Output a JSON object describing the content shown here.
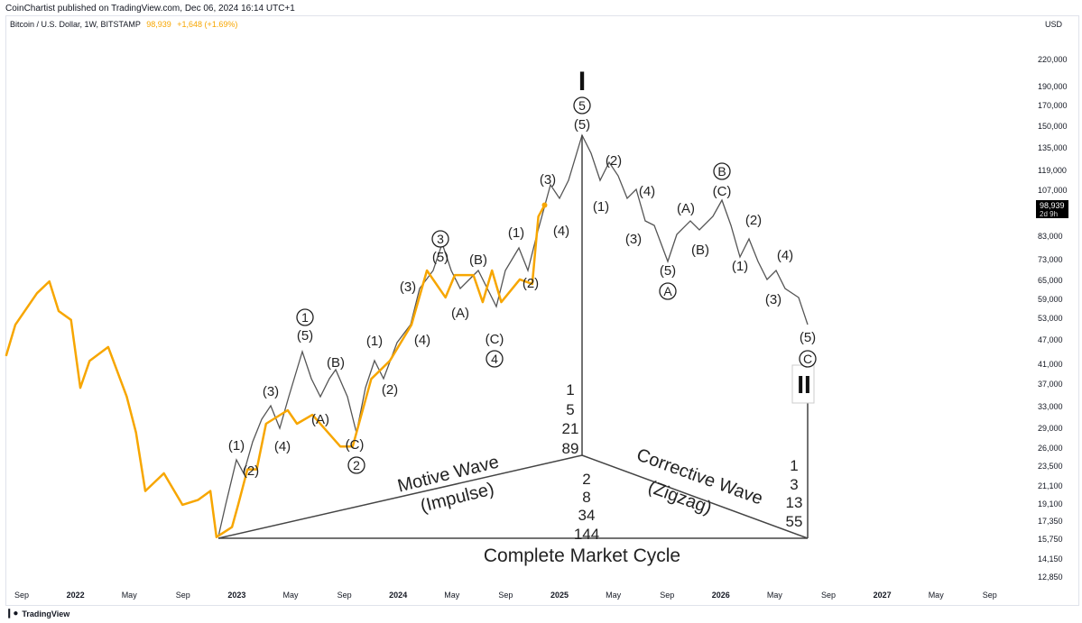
{
  "header": {
    "published": "CoinChartist published on TradingView.com, Dec 06, 2024 16:14 UTC+1"
  },
  "legend": {
    "symbol": "Bitcoin / U.S. Dollar, 1W, BITSTAMP",
    "last": "98,939",
    "change": "+1,648 (+1.69%)"
  },
  "price_tag": {
    "price": "98,939",
    "countdown": "2d 9h"
  },
  "footer": {
    "logo": "TradingView"
  },
  "colors": {
    "price_line": "#f7a600",
    "wave": "#555555",
    "tag_bg": "#000000"
  },
  "chart_data": {
    "type": "line",
    "yscale": "log",
    "ylabel": "USD",
    "ylim": [
      12000,
      240000
    ],
    "y_ticks": [
      "220,000",
      "190,000",
      "170,000",
      "150,000",
      "135,000",
      "119,000",
      "107,000",
      "83,000",
      "73,000",
      "65,000",
      "59,000",
      "53,000",
      "47,000",
      "41,000",
      "37,000",
      "33,000",
      "29,000",
      "26,000",
      "23,500",
      "21,100",
      "19,100",
      "17,350",
      "15,750",
      "14,150",
      "12,850"
    ],
    "x_ticks": [
      "Sep",
      "2022",
      "May",
      "Sep",
      "2023",
      "May",
      "Sep",
      "2024",
      "May",
      "Sep",
      "2025",
      "May",
      "Sep",
      "2026",
      "May",
      "Sep",
      "2027",
      "May",
      "Sep"
    ],
    "series": [
      {
        "points": [
          [
            "2021-08-02",
            43200
          ],
          [
            "2021-08-23",
            51300
          ],
          [
            "2021-10-11",
            61000
          ],
          [
            "2021-11-08",
            65100
          ],
          [
            "2021-11-29",
            55300
          ],
          [
            "2021-12-27",
            52700
          ],
          [
            "2022-01-17",
            36300
          ],
          [
            "2022-02-07",
            42100
          ],
          [
            "2022-03-21",
            45400
          ],
          [
            "2022-05-02",
            34600
          ],
          [
            "2022-05-23",
            28400
          ],
          [
            "2022-06-13",
            20600
          ],
          [
            "2022-07-25",
            22700
          ],
          [
            "2022-09-05",
            19100
          ],
          [
            "2022-10-10",
            19600
          ],
          [
            "2022-11-07",
            20600
          ],
          [
            "2022-11-21",
            16000
          ],
          [
            "2022-12-26",
            16900
          ],
          [
            "2023-01-09",
            19100
          ],
          [
            "2023-01-30",
            23200
          ],
          [
            "2023-02-20",
            23200
          ],
          [
            "2023-03-13",
            29800
          ],
          [
            "2023-05-01",
            32100
          ],
          [
            "2023-05-22",
            29800
          ],
          [
            "2023-06-26",
            31300
          ],
          [
            "2023-08-28",
            26300
          ],
          [
            "2023-09-25",
            26300
          ],
          [
            "2023-11-06",
            38100
          ],
          [
            "2023-12-18",
            42100
          ],
          [
            "2024-02-05",
            51300
          ],
          [
            "2024-03-11",
            69100
          ],
          [
            "2024-04-22",
            59600
          ],
          [
            "2024-05-13",
            67400
          ],
          [
            "2024-06-24",
            67400
          ],
          [
            "2024-07-15",
            58100
          ],
          [
            "2024-08-05",
            69100
          ],
          [
            "2024-08-26",
            58100
          ],
          [
            "2024-10-07",
            65800
          ],
          [
            "2024-11-04",
            64200
          ],
          [
            "2024-11-18",
            92900
          ],
          [
            "2024-12-02",
            98939
          ]
        ]
      }
    ],
    "annotations": {
      "wave_labels_circled": [
        "1",
        "2",
        "3",
        "4",
        "5",
        "A",
        "B",
        "C"
      ],
      "wave_labels": [
        "(1)",
        "(2)",
        "(3)",
        "(4)",
        "(5)",
        "(A)",
        "(B)",
        "(C)",
        "(1)",
        "(2)",
        "(3)",
        "(4)",
        "(5)",
        "(A)",
        "(B)",
        "(C)",
        "(1)",
        "(2)",
        "(3)",
        "(4)",
        "(5)",
        "(2)",
        "(1)",
        "(4)",
        "(3)",
        "(5)",
        "(A)",
        "(B)",
        "(C)",
        "(2)",
        "(1)",
        "(4)",
        "(3)",
        "(5)"
      ],
      "degree_top": "I",
      "degree_bottom": "II",
      "fib_left": [
        "1",
        "5",
        "21",
        "89"
      ],
      "fib_mid": [
        "2",
        "8",
        "34",
        "144"
      ],
      "fib_right": [
        "1",
        "3",
        "13",
        "55"
      ],
      "motive": [
        "Motive Wave",
        "(Impulse)"
      ],
      "corrective": [
        "Corrective Wave",
        "(Zigzag)"
      ],
      "cycle": "Complete Market Cycle"
    }
  }
}
